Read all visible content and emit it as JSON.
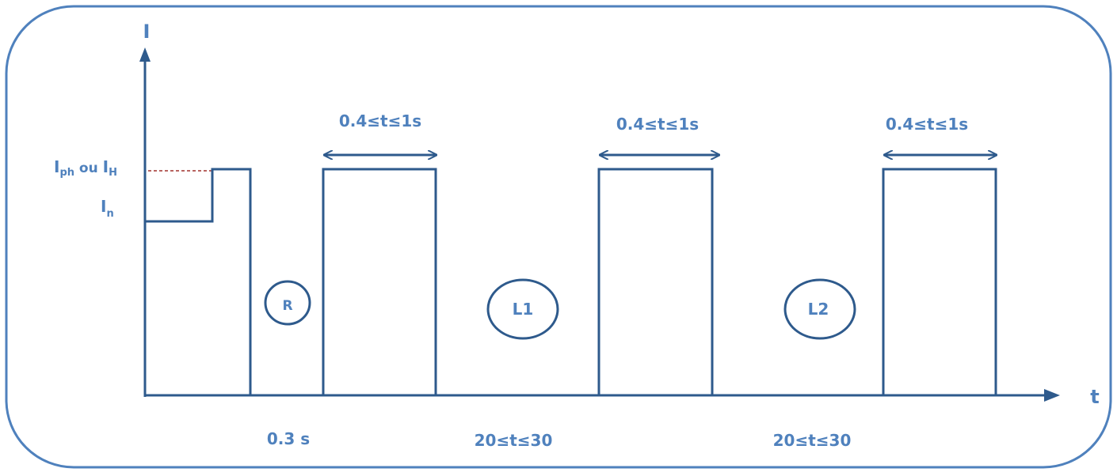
{
  "diagram": {
    "frame_color": "#4f81bd",
    "line_color": "#2e5a8c",
    "label_color": "#4f81bd",
    "dashed_line_color": "#a0302c",
    "axes": {
      "y_label": "I",
      "x_label": "t"
    },
    "levels": {
      "high_label_main": "I",
      "high_label_sub1": "ph",
      "high_label_ou": " ou ",
      "high_label_main2": "I",
      "high_label_sub2": "H",
      "low_label_main": "I",
      "low_label_sub": "n"
    },
    "pulse_durations": [
      "0.4≤t≤1s",
      "0.4≤t≤1s",
      "0.4≤t≤1s"
    ],
    "interval_labels": {
      "gap_first": "0.3 s",
      "gap_second": "20≤t≤30",
      "gap_third": "20≤t≤30"
    },
    "markers": [
      "R",
      "L1",
      "L2"
    ]
  }
}
